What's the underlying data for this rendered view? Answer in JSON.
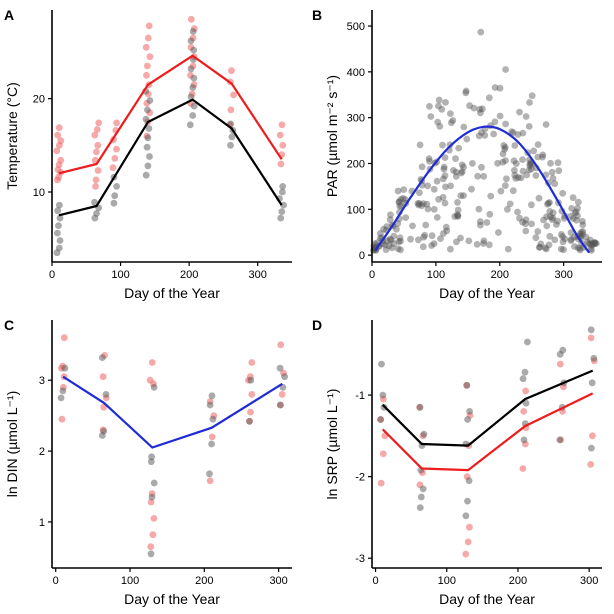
{
  "colors": {
    "red": "#ee1c1c",
    "black": "#000000",
    "blue": "#1f2bd6",
    "point_red": "#f07070",
    "point_grey": "#555555",
    "point_red_light": "#f5a0a0"
  },
  "chart_data": [
    {
      "panel_label": "A",
      "type": "scatter",
      "title": "",
      "xlabel": "Day of the Year",
      "ylabel": "Temperature (°C)",
      "xlim": [
        0,
        350
      ],
      "ylim": [
        2.5,
        29.5
      ],
      "xticks": [
        0,
        100,
        200,
        300
      ],
      "yticks": [
        10,
        20
      ],
      "series": [
        {
          "name": "surface",
          "color": "#ee1c1c",
          "x": [
            10,
            65,
            140,
            205,
            262,
            335
          ],
          "values": [
            12.0,
            13.0,
            21.5,
            24.6,
            21.6,
            13.5
          ]
        },
        {
          "name": "bottom",
          "color": "#000000",
          "x": [
            10,
            65,
            140,
            205,
            262,
            335
          ],
          "values": [
            7.5,
            8.5,
            17.5,
            19.9,
            16.8,
            8.6
          ]
        }
      ],
      "point_groups": [
        {
          "color": "red",
          "x": 10,
          "values": [
            11.3,
            11.6,
            12.1,
            12.4,
            12.9,
            13.4,
            14.4,
            15.0,
            15.5,
            16.1,
            16.9
          ]
        },
        {
          "color": "grey",
          "x": 10,
          "values": [
            3.5,
            4.0,
            4.8,
            5.6,
            6.4,
            7.2,
            8.0,
            8.6
          ]
        },
        {
          "color": "red",
          "x": 65,
          "values": [
            10.6,
            11.3,
            12.3,
            13.4,
            14.3,
            15.0,
            16.1,
            16.7,
            17.4
          ]
        },
        {
          "color": "grey",
          "x": 65,
          "values": [
            7.2,
            7.7,
            8.3,
            8.9
          ]
        },
        {
          "color": "red",
          "x": 92,
          "values": [
            12.6,
            13.6,
            14.6,
            15.6,
            16.6,
            17.4
          ]
        },
        {
          "color": "grey",
          "x": 92,
          "values": [
            8.8,
            9.6,
            10.6,
            11.6
          ]
        },
        {
          "color": "red",
          "x": 140,
          "values": [
            16.0,
            17.5,
            18.5,
            19.5,
            20.5,
            21.5,
            22.5,
            23.5,
            24.5,
            25.5,
            26.5,
            27.8
          ]
        },
        {
          "color": "grey",
          "x": 140,
          "values": [
            11.8,
            12.8,
            13.8,
            14.8,
            15.8,
            16.8,
            17.8,
            18.8,
            19.8,
            20.8
          ]
        },
        {
          "color": "red",
          "x": 205,
          "values": [
            19.5,
            20.5,
            21.5,
            22.5,
            23.5,
            24.5,
            25.5,
            26.5,
            27.5,
            28.5
          ]
        },
        {
          "color": "grey",
          "x": 205,
          "values": [
            17.2,
            18.2,
            19.2,
            20.2,
            21.2,
            22.2,
            23.2,
            24.2,
            25.2,
            26.2,
            27.2
          ]
        },
        {
          "color": "red",
          "x": 262,
          "values": [
            17.2,
            18.8,
            20.4,
            21.8,
            23.0
          ]
        },
        {
          "color": "grey",
          "x": 262,
          "values": [
            15.0,
            15.9,
            16.6,
            17.3
          ]
        },
        {
          "color": "red",
          "x": 335,
          "values": [
            13.0,
            14.0,
            15.0,
            16.1,
            17.2
          ]
        },
        {
          "color": "grey",
          "x": 335,
          "values": [
            7.2,
            7.9,
            8.6,
            9.3,
            10.0,
            10.6
          ]
        }
      ]
    },
    {
      "panel_label": "B",
      "type": "scatter",
      "title": "",
      "xlabel": "Day of the Year",
      "ylabel": "PAR (µmol m⁻² s⁻¹)",
      "xlim": [
        0,
        360
      ],
      "ylim": [
        -15,
        535
      ],
      "xticks": [
        0,
        100,
        200,
        300
      ],
      "yticks": [
        0,
        100,
        200,
        300,
        400,
        500
      ],
      "series": [
        {
          "name": "fit",
          "color": "#1f2bd6",
          "x": [
            5,
            30,
            60,
            90,
            120,
            150,
            175,
            200,
            230,
            260,
            290,
            320,
            340
          ],
          "values": [
            10,
            60,
            125,
            185,
            235,
            268,
            280,
            275,
            245,
            190,
            120,
            45,
            5
          ]
        }
      ],
      "point_cloud": {
        "color": "grey",
        "count": 320,
        "x_range": [
          2,
          352
        ],
        "y_max": 515,
        "center_x": 175
      }
    },
    {
      "panel_label": "C",
      "type": "scatter",
      "title": "",
      "xlabel": "Day of the Year",
      "ylabel": "ln DIN (µmol L⁻¹)",
      "xlim": [
        -5,
        318
      ],
      "ylim": [
        0.35,
        3.85
      ],
      "xticks": [
        0,
        100,
        200,
        300
      ],
      "yticks": [
        1,
        2,
        3
      ],
      "series": [
        {
          "name": "fit",
          "color": "#1f2bd6",
          "x": [
            10,
            65,
            130,
            210,
            305
          ],
          "values": [
            3.05,
            2.68,
            2.05,
            2.33,
            2.95
          ]
        }
      ],
      "point_groups": [
        {
          "color": "red",
          "x": 10,
          "values": [
            2.45,
            2.9,
            3.05,
            3.17,
            3.2,
            3.6
          ]
        },
        {
          "color": "grey",
          "x": 10,
          "values": [
            2.75,
            2.85,
            3.17
          ]
        },
        {
          "color": "red",
          "x": 65,
          "values": [
            2.3,
            2.62,
            2.75,
            3.05,
            3.35
          ]
        },
        {
          "color": "grey",
          "x": 65,
          "values": [
            2.22,
            2.28,
            2.8,
            3.32
          ]
        },
        {
          "color": "red",
          "x": 130,
          "values": [
            0.65,
            0.82,
            1.05,
            1.28,
            1.4,
            2.95,
            3.0,
            3.25
          ]
        },
        {
          "color": "grey",
          "x": 130,
          "values": [
            0.55,
            1.35,
            1.55,
            1.85,
            1.92,
            2.9
          ]
        },
        {
          "color": "red",
          "x": 210,
          "values": [
            1.58,
            2.2,
            2.5,
            2.7
          ]
        },
        {
          "color": "grey",
          "x": 210,
          "values": [
            1.68,
            2.1,
            2.45,
            2.65,
            2.78
          ]
        },
        {
          "color": "red",
          "x": 262,
          "values": [
            2.42,
            2.55,
            2.8,
            3.0,
            3.05,
            3.25
          ]
        },
        {
          "color": "grey",
          "x": 262,
          "values": [
            2.42,
            3.0
          ]
        },
        {
          "color": "red",
          "x": 305,
          "values": [
            2.65,
            2.8,
            3.1,
            3.5
          ]
        },
        {
          "color": "grey",
          "x": 305,
          "values": [
            2.65,
            2.9,
            3.05,
            3.17
          ]
        }
      ]
    },
    {
      "panel_label": "D",
      "type": "scatter",
      "title": "",
      "xlabel": "Day of the Year",
      "ylabel": "ln SRP (µmol L⁻¹)",
      "xlim": [
        -5,
        318
      ],
      "ylim": [
        -3.12,
        -0.08
      ],
      "xticks": [
        0,
        100,
        200,
        300
      ],
      "yticks": [
        -3,
        -2,
        -1
      ],
      "series": [
        {
          "name": "black",
          "color": "#000000",
          "x": [
            10,
            65,
            130,
            210,
            305
          ],
          "values": [
            -1.12,
            -1.6,
            -1.62,
            -1.05,
            -0.7
          ]
        },
        {
          "name": "red",
          "color": "#ee1c1c",
          "x": [
            10,
            65,
            130,
            210,
            305
          ],
          "values": [
            -1.42,
            -1.9,
            -1.92,
            -1.38,
            -0.98
          ]
        }
      ],
      "point_groups": [
        {
          "color": "red",
          "x": 10,
          "values": [
            -2.08,
            -1.72,
            -1.5,
            -1.3,
            -1.05
          ]
        },
        {
          "color": "grey",
          "x": 10,
          "values": [
            -0.62,
            -1.0,
            -1.15,
            -1.3
          ]
        },
        {
          "color": "red",
          "x": 65,
          "values": [
            -2.1,
            -1.95,
            -1.5,
            -1.15
          ]
        },
        {
          "color": "grey",
          "x": 65,
          "values": [
            -2.38,
            -2.25,
            -2.15,
            -1.92,
            -1.62,
            -1.48,
            -1.15
          ]
        },
        {
          "color": "red",
          "x": 130,
          "values": [
            -2.95,
            -2.8,
            -2.62,
            -2.0,
            -1.62,
            -1.25,
            -0.88
          ]
        },
        {
          "color": "grey",
          "x": 130,
          "values": [
            -2.48,
            -2.3,
            -2.05,
            -1.6,
            -1.3,
            -1.2,
            -0.88
          ]
        },
        {
          "color": "red",
          "x": 210,
          "values": [
            -1.9,
            -1.6,
            -1.4,
            -1.2,
            -0.95
          ]
        },
        {
          "color": "grey",
          "x": 210,
          "values": [
            -1.55,
            -1.35,
            -1.1,
            -0.8,
            -0.72,
            -0.35
          ]
        },
        {
          "color": "red",
          "x": 262,
          "values": [
            -1.55,
            -1.2,
            -0.9,
            -0.62
          ]
        },
        {
          "color": "grey",
          "x": 262,
          "values": [
            -1.55,
            -1.15,
            -0.85,
            -0.5,
            -0.45
          ]
        },
        {
          "color": "red",
          "x": 305,
          "values": [
            -1.85,
            -1.5,
            -0.58,
            -0.3
          ]
        },
        {
          "color": "grey",
          "x": 305,
          "values": [
            -1.65,
            -0.85,
            -0.55,
            -0.2
          ]
        }
      ]
    }
  ]
}
